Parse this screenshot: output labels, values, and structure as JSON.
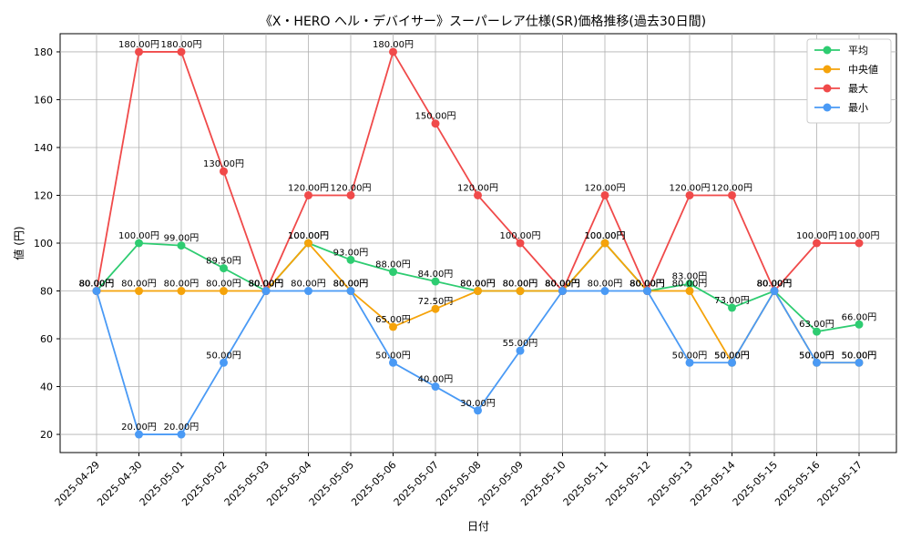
{
  "chart_data": {
    "type": "line",
    "title": "《X・HERO ヘル・デバイサー》スーパーレア仕様(SR)価格推移(過去30日間)",
    "xlabel": "日付",
    "ylabel": "値 (円)",
    "ylim": [
      12.4,
      187.6
    ],
    "yticks": [
      20,
      40,
      60,
      80,
      100,
      120,
      140,
      160,
      180
    ],
    "grid": true,
    "legend_position": "top-right",
    "categories": [
      "2025-04-29",
      "2025-04-30",
      "2025-05-01",
      "2025-05-02",
      "2025-05-03",
      "2025-05-04",
      "2025-05-05",
      "2025-05-06",
      "2025-05-07",
      "2025-05-08",
      "2025-05-09",
      "2025-05-10",
      "2025-05-11",
      "2025-05-12",
      "2025-05-13",
      "2025-05-14",
      "2025-05-15",
      "2025-05-16",
      "2025-05-17"
    ],
    "series": [
      {
        "name": "平均",
        "color": "#2ecc71",
        "values": [
          80,
          100,
          99,
          89.5,
          80,
          100,
          93,
          88,
          84,
          80,
          80,
          80,
          100,
          80,
          83,
          73,
          80,
          63,
          66
        ],
        "labels": [
          "80.00円",
          "100.00円",
          "99.00円",
          "89.50円",
          "80.00円",
          "100.00円",
          "93.00円",
          "88.00円",
          "84.00円",
          "80.00円",
          "80.00円",
          "80.00円",
          "100.00円",
          "80.00円",
          "83.00円",
          "73.00円",
          "80.00円",
          "63.00円",
          "66.00円"
        ]
      },
      {
        "name": "中央値",
        "color": "#f5a30a",
        "values": [
          80,
          80,
          80,
          80,
          80,
          100,
          80,
          65,
          72.5,
          80,
          80,
          80,
          100,
          80,
          80,
          50,
          80,
          50,
          50
        ],
        "labels": [
          "80.00円",
          "80.00円",
          "80.00円",
          "80.00円",
          "80.00円",
          "100.00円",
          "80.00円",
          "65.00円",
          "72.50円",
          "80.00円",
          "80.00円",
          "80.00円",
          "100.00円",
          "80.00円",
          "80.00円",
          "50.00円",
          "80.00円",
          "50.00円",
          "50.00円"
        ]
      },
      {
        "name": "最大",
        "color": "#f04a4a",
        "values": [
          80,
          180,
          180,
          130,
          80,
          120,
          120,
          180,
          150,
          120,
          100,
          80,
          120,
          80,
          120,
          120,
          80,
          100,
          100
        ],
        "labels": [
          "80.00円",
          "180.00円",
          "180.00円",
          "130.00円",
          "80.00円",
          "120.00円",
          "120.00円",
          "180.00円",
          "150.00円",
          "120.00円",
          "100.00円",
          "80.00円",
          "120.00円",
          "80.00円",
          "120.00円",
          "120.00円",
          "80.00円",
          "100.00円",
          "100.00円"
        ]
      },
      {
        "name": "最小",
        "color": "#4a9af5",
        "values": [
          80,
          20,
          20,
          50,
          80,
          80,
          80,
          50,
          40,
          30,
          55,
          80,
          80,
          80,
          50,
          50,
          80,
          50,
          50
        ],
        "labels": [
          "80.00円",
          "20.00円",
          "20.00円",
          "50.00円",
          "80.00円",
          "80.00円",
          "80.00円",
          "50.00円",
          "40.00円",
          "30.00円",
          "55.00円",
          "80.00円",
          "80.00円",
          "80.00円",
          "50.00円",
          "50.00円",
          "80.00円",
          "50.00円",
          "50.00円"
        ]
      }
    ]
  }
}
